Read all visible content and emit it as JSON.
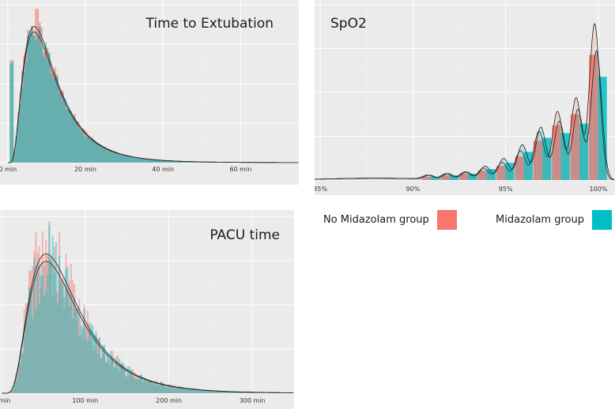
{
  "colors": {
    "no_midazolam": "#f8766d",
    "midazolam": "#00bfc4",
    "panel_bg": "#ebebeb",
    "grid": "#ffffff"
  },
  "legend": [
    {
      "label": "No Midazolam group",
      "color": "#f8766d"
    },
    {
      "label": "Midazolam group",
      "color": "#00bfc4"
    }
  ],
  "chart_data": [
    {
      "id": "extubation",
      "type": "histogram_density",
      "title": "Time to Extubation",
      "xlim": [
        -2,
        75
      ],
      "ylim": [
        0,
        1.16
      ],
      "xticks": [
        0,
        20,
        40,
        60
      ],
      "xtick_labels": [
        "0 min",
        "20 min",
        "40 min",
        "60 min"
      ],
      "bin_width": 0.5,
      "dist": {
        "kind": "lognormal",
        "median": 10,
        "sigma": 0.62,
        "shift": 0
      },
      "series": [
        {
          "name": "No Midazolam group",
          "peak": 1.0,
          "spike": {
            "x": 7.5,
            "height": 1.13
          }
        },
        {
          "name": "Midazolam group",
          "peak": 0.96
        }
      ]
    },
    {
      "id": "spo2",
      "type": "histogram_density",
      "title": "SpO2",
      "xlim": [
        84.7,
        100.9
      ],
      "ylim": [
        0,
        1.12
      ],
      "xticks": [
        85,
        90,
        95,
        100
      ],
      "xtick_labels": [
        "85%",
        "90%",
        "95%",
        "100%"
      ],
      "categories": [
        91,
        92,
        93,
        94,
        95,
        96,
        97,
        98,
        99,
        100
      ],
      "series": [
        {
          "name": "No Midazolam group",
          "values": [
            0.02,
            0.03,
            0.04,
            0.06,
            0.09,
            0.15,
            0.25,
            0.35,
            0.42,
            0.8
          ]
        },
        {
          "name": "Midazolam group",
          "values": [
            0.02,
            0.03,
            0.04,
            0.07,
            0.11,
            0.18,
            0.27,
            0.3,
            0.36,
            0.66
          ]
        }
      ]
    },
    {
      "id": "pacu",
      "type": "histogram_density",
      "title": "PACU time",
      "xlim": [
        -2,
        350
      ],
      "ylim": [
        0,
        1.18
      ],
      "xticks": [
        0,
        100,
        200,
        300
      ],
      "xtick_labels": [
        "0 min",
        "100 min",
        "200 min",
        "300 min"
      ],
      "bin_width": 2,
      "dist": {
        "kind": "lognormal",
        "median": 72,
        "sigma": 0.55,
        "shift": 0
      },
      "series": [
        {
          "name": "No Midazolam group",
          "peak": 0.93
        },
        {
          "name": "Midazolam group",
          "peak": 0.88
        }
      ]
    }
  ]
}
